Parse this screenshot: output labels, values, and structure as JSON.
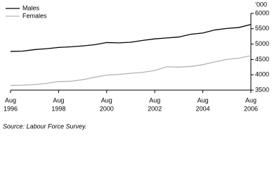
{
  "chart_data": {
    "type": "line",
    "unit_label": "'000",
    "source": "Source: Labour Force Survey.",
    "x": [
      "1996-08",
      "1997-02",
      "1997-08",
      "1998-02",
      "1998-08",
      "1999-02",
      "1999-08",
      "2000-02",
      "2000-08",
      "2001-02",
      "2001-08",
      "2002-02",
      "2002-08",
      "2003-02",
      "2003-08",
      "2004-02",
      "2004-08",
      "2005-02",
      "2005-08",
      "2006-02",
      "2006-08"
    ],
    "series": [
      {
        "name": "Males",
        "color": "#000000",
        "values": [
          4760,
          4770,
          4820,
          4850,
          4890,
          4910,
          4940,
          4980,
          5050,
          5040,
          5060,
          5120,
          5170,
          5200,
          5230,
          5320,
          5360,
          5460,
          5510,
          5540,
          5640
        ]
      },
      {
        "name": "Females",
        "color": "#b4b4b4",
        "values": [
          3650,
          3660,
          3680,
          3720,
          3780,
          3790,
          3840,
          3920,
          3990,
          4010,
          4050,
          4080,
          4140,
          4260,
          4250,
          4270,
          4330,
          4420,
          4500,
          4540,
          4620
        ]
      }
    ],
    "xlim": [
      "1996-08",
      "2006-08"
    ],
    "xticks": [
      {
        "value": "1996-08",
        "label": [
          "Aug",
          "1996"
        ]
      },
      {
        "value": "1998-08",
        "label": [
          "Aug",
          "1998"
        ]
      },
      {
        "value": "2000-08",
        "label": [
          "Aug",
          "2000"
        ]
      },
      {
        "value": "2002-08",
        "label": [
          "Aug",
          "2002"
        ]
      },
      {
        "value": "2004-08",
        "label": [
          "Aug",
          "2004"
        ]
      },
      {
        "value": "2006-08",
        "label": [
          "Aug",
          "2006"
        ]
      }
    ],
    "ylim": [
      3500,
      6000
    ],
    "yticks": [
      3500,
      4000,
      4500,
      5000,
      5500,
      6000
    ],
    "legend": "top-left"
  }
}
